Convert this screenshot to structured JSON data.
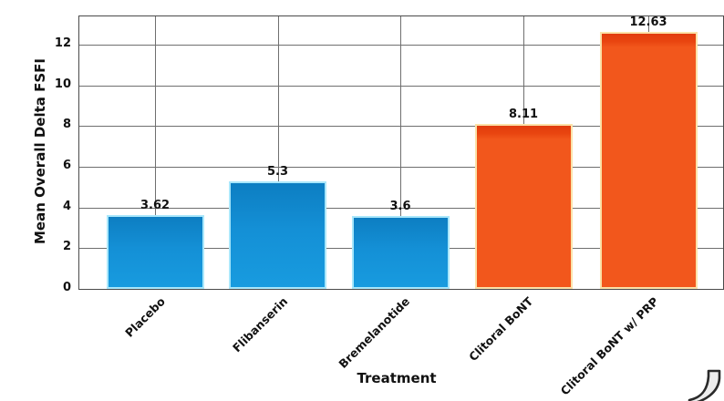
{
  "chart_data": {
    "type": "bar",
    "title": "",
    "xlabel": "Treatment",
    "ylabel": "Mean Overall Delta FSFI",
    "categories": [
      "Placebo",
      "Flibanserin",
      "Bremelanotide",
      "Clitoral BoNT",
      "Clitoral BoNT w/ PRP"
    ],
    "values": [
      3.62,
      5.3,
      3.6,
      8.11,
      12.63
    ],
    "value_labels": [
      "3.62",
      "5.3",
      "3.6",
      "8.11",
      "12.63"
    ],
    "series_colors": [
      "blue",
      "blue",
      "blue",
      "orange",
      "orange"
    ],
    "yticks": [
      0,
      2,
      4,
      6,
      8,
      10,
      12
    ],
    "ylim": [
      0,
      13.4
    ],
    "grid": "on",
    "legend": "none"
  },
  "style": {
    "background": "#ffffff",
    "blue_fill_top": "#0d7ec2",
    "blue_fill_bottom": "#189bdf",
    "blue_border": "#a9e7fb",
    "orange_fill_top": "#e23c0e",
    "orange_fill_main": "#f2571c",
    "orange_border": "#fbe2a8",
    "grid_color": "#6f6f6f",
    "spine_color": "#4a4a4a",
    "text_color": "#111111"
  },
  "icons": {
    "corner": "page-curl-icon"
  }
}
